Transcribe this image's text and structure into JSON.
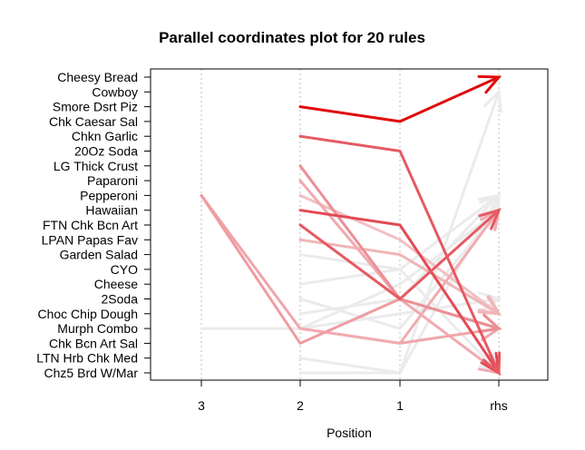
{
  "chart_data": {
    "type": "parallel-coordinates",
    "title": "Parallel coordinates plot for 20 rules",
    "xlabel": "Position",
    "x_categories": [
      "3",
      "2",
      "1",
      "rhs"
    ],
    "y_items": [
      "Cheesy Bread",
      "Cowboy",
      "Smore Dsrt Piz",
      "Chk Caesar Sal",
      "Chkn Garlic",
      "20Oz Soda",
      "LG Thick Crust",
      "Paparoni",
      "Pepperoni",
      "Hawaiian",
      "FTN Chk Bcn Art",
      "LPAN Papas Fav",
      "Garden Salad",
      "CYO",
      "Cheese",
      "2Soda",
      "Choc Chip Dough",
      "Murph Combo",
      "Chk Bcn Art Sal",
      "LTN Hrb Chk Med",
      "Chz5 Brd W/Mar"
    ],
    "rules": [
      {
        "path": [
          null,
          "Smore Dsrt Piz",
          "Chk Caesar Sal",
          "Cheesy Bread"
        ],
        "color": "#e00a0a",
        "width": 3
      },
      {
        "path": [
          null,
          "Chkn Garlic",
          "20Oz Soda",
          "Chz5 Brd W/Mar"
        ],
        "color": "#e65a62",
        "width": 3
      },
      {
        "path": [
          null,
          "FTN Chk Bcn Art",
          "2Soda",
          "Hawaiian"
        ],
        "color": "#e65a62",
        "width": 3
      },
      {
        "path": [
          null,
          "Hawaiian",
          "FTN Chk Bcn Art",
          "Chz5 Brd W/Mar"
        ],
        "color": "#e34a54",
        "width": 3
      },
      {
        "path": [
          null,
          "LG Thick Crust",
          "2Soda",
          "Murph Combo"
        ],
        "color": "#eb8f96",
        "width": 3
      },
      {
        "path": [
          "Pepperoni",
          "Chk Bcn Art Sal",
          "2Soda",
          "Murph Combo"
        ],
        "color": "#ee9da3",
        "width": 3
      },
      {
        "path": [
          null,
          "Murph Combo",
          "Chk Bcn Art Sal",
          "Hawaiian"
        ],
        "color": "#f0acb1",
        "width": 3
      },
      {
        "path": [
          "Pepperoni",
          "Murph Combo",
          "Chk Bcn Art Sal",
          "Murph Combo"
        ],
        "color": "#efa6ab",
        "width": 3
      },
      {
        "path": [
          null,
          "Paparoni",
          "2Soda",
          "Chz5 Brd W/Mar"
        ],
        "color": "#f0aab0",
        "width": 3
      },
      {
        "path": [
          null,
          "LPAN Papas Fav",
          "Garden Salad",
          "Choc Chip Dough"
        ],
        "color": "#f0b5b8",
        "width": 3
      },
      {
        "path": [
          null,
          "Garden Salad",
          "CYO",
          "Chz5 Brd W/Mar"
        ],
        "color": "#ebebeb",
        "width": 3
      },
      {
        "path": [
          null,
          "Choc Chip Dough",
          "2Soda",
          "Hawaiian"
        ],
        "color": "#ebebeb",
        "width": 3
      },
      {
        "path": [
          null,
          "Chk Bcn Art Sal",
          "2Soda",
          "Pepperoni"
        ],
        "color": "#ebebeb",
        "width": 3
      },
      {
        "path": [
          "Murph Combo",
          "Murph Combo",
          "Cheese",
          "Hawaiian"
        ],
        "color": "#ebebeb",
        "width": 3
      },
      {
        "path": [
          null,
          "LTN Hrb Chk Med",
          "Chz5 Brd W/Mar",
          "Cowboy"
        ],
        "color": "#ebebeb",
        "width": 3
      },
      {
        "path": [
          null,
          "Chz5 Brd W/Mar",
          "Chz5 Brd W/Mar",
          "Pepperoni"
        ],
        "color": "#ebebeb",
        "width": 3
      },
      {
        "path": [
          null,
          "Cheese",
          "CYO",
          "Pepperoni"
        ],
        "color": "#ebebeb",
        "width": 3
      },
      {
        "path": [
          null,
          "Murph Combo",
          "Choc Chip Dough",
          "2Soda"
        ],
        "color": "#ebebeb",
        "width": 3
      },
      {
        "path": [
          null,
          "Pepperoni",
          "LPAN Papas Fav",
          "Choc Chip Dough"
        ],
        "color": "#f2c0c3",
        "width": 3
      },
      {
        "path": [
          null,
          "2Soda",
          "Murph Combo",
          "Hawaiian"
        ],
        "color": "#ebebeb",
        "width": 3
      }
    ]
  }
}
